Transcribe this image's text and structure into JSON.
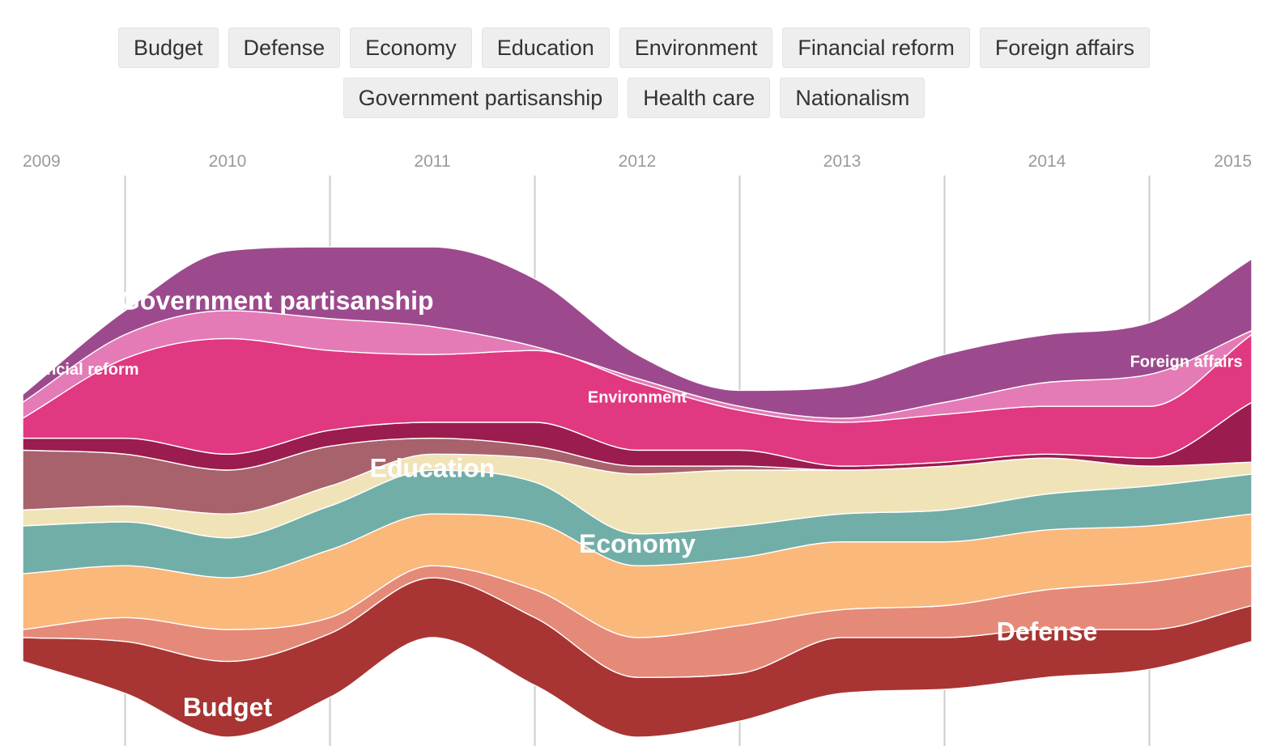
{
  "filters": [
    "Budget",
    "Defense",
    "Economy",
    "Education",
    "Environment",
    "Financial reform",
    "Foreign affairs",
    "Government partisanship",
    "Health care",
    "Nationalism"
  ],
  "chart_data": {
    "type": "area",
    "title": "",
    "xlabel": "",
    "ylabel": "",
    "x": [
      2009,
      2009.5,
      2010,
      2010.5,
      2011,
      2011.5,
      2012,
      2012.5,
      2013,
      2013.5,
      2014,
      2014.5,
      2015
    ],
    "x_ticks": [
      "2009",
      "2010",
      "2011",
      "2012",
      "2013",
      "2014",
      "2015"
    ],
    "grid": true,
    "baseline": [
      -21,
      -29,
      -40,
      -30,
      -15,
      -27,
      -40,
      -36,
      -29,
      -28,
      -25,
      -23,
      -16
    ],
    "series": [
      {
        "name": "Budget",
        "label": "Budget",
        "color": "#a83533",
        "values": [
          6,
          13,
          19,
          16,
          15,
          17,
          15,
          12,
          14,
          13,
          12,
          10,
          9
        ],
        "label_pos": [
          2010,
          -33
        ],
        "label_size": 32
      },
      {
        "name": "Defense",
        "label": "Defense",
        "color": "#e58a78",
        "values": [
          2,
          6,
          8,
          4,
          3,
          7,
          10,
          12,
          7,
          8,
          10,
          12,
          10
        ],
        "label_pos": [
          2014,
          -14
        ],
        "label_size": 32
      },
      {
        "name": "Economy",
        "label": "Economy",
        "color": "#fab87a",
        "values": [
          14,
          13,
          13,
          17,
          13,
          17,
          18,
          17,
          17,
          16,
          15,
          14,
          13
        ],
        "label_pos": [
          2012,
          8
        ],
        "label_size": 32
      },
      {
        "name": "Education",
        "label": "Education",
        "color": "#72aea8",
        "values": [
          12,
          11,
          10,
          11,
          11,
          10,
          8,
          8,
          7,
          8,
          9,
          10,
          10
        ],
        "label_pos": [
          2011,
          27
        ],
        "label_size": 32
      },
      {
        "name": "Environment",
        "label": "Environment",
        "color": "#f1e3b8",
        "values": [
          4,
          4,
          6,
          5,
          4,
          6,
          15,
          14,
          11,
          11,
          9,
          5,
          3
        ],
        "label_pos": [
          2012,
          45
        ],
        "label_size": 20
      },
      {
        "name": "Financial reform",
        "label": "Financial reform",
        "color": "#a8626c",
        "values": [
          15,
          13,
          11,
          10,
          4,
          3,
          2,
          1,
          0,
          0,
          0,
          0,
          0
        ],
        "label_pos": [
          2009.26,
          52
        ],
        "label_size": 20
      },
      {
        "name": "Foreign affairs",
        "label": "Foreign affairs",
        "color": "#9b1c4f",
        "values": [
          3,
          4,
          4,
          4,
          4,
          6,
          4,
          4,
          1,
          1,
          1,
          2,
          15
        ],
        "label_pos": [
          2014.68,
          54
        ],
        "label_size": 20
      },
      {
        "name": "Government partisanship",
        "label": "Government partisanship",
        "color": "#e03881",
        "values": [
          5,
          20,
          29,
          20,
          17,
          18,
          17,
          10,
          11,
          12,
          12,
          13,
          17
        ],
        "label_pos": [
          2010.24,
          69
        ],
        "label_size": 32
      },
      {
        "name": "Health care",
        "label": "Health care",
        "color": "#e47bb6",
        "values": [
          4,
          6,
          7,
          8,
          7,
          1,
          1,
          1,
          1,
          3,
          6,
          8,
          1
        ],
        "label_pos": [
          2010,
          86
        ],
        "label_size": 20
      },
      {
        "name": "Nationalism",
        "label": "Nationalism",
        "color": "#9c4a8d",
        "values": [
          2,
          6,
          15,
          18,
          20,
          17,
          6,
          4,
          8,
          12,
          12,
          13,
          18
        ],
        "label_pos": [
          2011,
          91
        ],
        "label_size": 32
      }
    ]
  }
}
